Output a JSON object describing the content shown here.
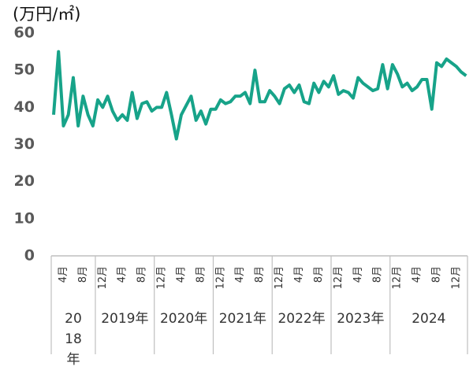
{
  "chart_data": {
    "type": "line",
    "title": "(万円/㎡)",
    "categories": [
      null,
      null,
      "4月",
      null,
      null,
      null,
      "8月",
      null,
      null,
      null,
      "12月",
      null,
      null,
      null,
      "4月",
      null,
      null,
      null,
      "8月",
      null,
      null,
      null,
      "12月",
      null,
      null,
      null,
      "4月",
      null,
      null,
      null,
      "8月",
      null,
      null,
      null,
      "12月",
      null,
      null,
      null,
      "4月",
      null,
      null,
      null,
      "8月",
      null,
      null,
      null,
      "12月",
      null,
      null,
      null,
      "4月",
      null,
      null,
      null,
      "8月",
      null,
      null,
      null,
      "12月",
      null,
      null,
      null,
      "4月",
      null,
      null,
      null,
      "8月",
      null,
      null,
      null,
      "12月",
      null,
      null,
      null,
      "4月",
      null,
      null,
      null,
      "8月",
      null,
      null,
      null,
      "12月",
      null,
      null
    ],
    "year_groups": [
      "2018年",
      "2019年",
      "2020年",
      "2021年",
      "2022年",
      "2023年",
      "2024"
    ],
    "series": [
      {
        "color": "#17a389",
        "values": [
          38,
          55,
          35,
          38,
          48,
          35,
          43,
          38,
          35,
          42,
          40,
          43,
          39,
          36.5,
          38,
          36.5,
          44,
          37,
          41,
          41.5,
          39,
          40,
          40,
          44,
          38,
          31.5,
          38,
          40.5,
          43,
          36.5,
          39,
          35.5,
          39.5,
          39.5,
          42,
          41,
          41.5,
          43,
          43,
          44,
          41,
          50,
          41.5,
          41.5,
          44.5,
          43,
          41,
          45,
          46,
          44,
          46,
          41.5,
          41,
          46.5,
          44,
          47,
          45.5,
          48.5,
          43.5,
          44.5,
          44,
          42.5,
          48,
          46.5,
          45.5,
          44.5,
          45,
          51.5,
          45,
          51.5,
          49,
          45.5,
          46.5,
          44.5,
          45.5,
          47.5,
          47.5,
          39.5,
          52,
          51,
          53,
          52,
          51,
          49.5,
          48.5
        ]
      }
    ],
    "ylim": [
      0,
      60
    ],
    "yticks": [
      0,
      10,
      20,
      30,
      40,
      50,
      60
    ],
    "grid": false
  }
}
